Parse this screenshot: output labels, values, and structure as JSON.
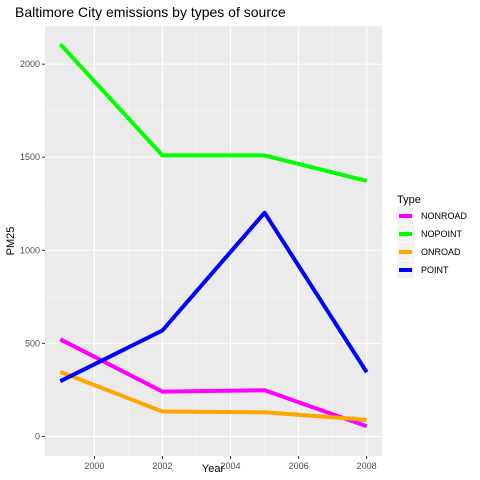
{
  "chart_data": {
    "type": "line",
    "title": "Baltimore City emissions by types of source",
    "xlabel": "Year",
    "ylabel": "PM25",
    "x": [
      1999,
      2002,
      2005,
      2008
    ],
    "x_ticks": [
      "2000",
      "2002",
      "2004",
      "2006",
      "2008"
    ],
    "y_ticks": [
      "0",
      "500",
      "1000",
      "1500",
      "2000"
    ],
    "xlim": [
      1998.55,
      2008.45
    ],
    "ylim": [
      -105,
      2205
    ],
    "grid": true,
    "legend_title": "Type",
    "legend_position": "right",
    "series": [
      {
        "name": "NONROAD",
        "color": "#ff00ff",
        "values": [
          522,
          241,
          248,
          55
        ]
      },
      {
        "name": "NOPOINT",
        "color": "#00ff00",
        "values": [
          2107,
          1510,
          1510,
          1373
        ]
      },
      {
        "name": "ONROAD",
        "color": "#ffa500",
        "values": [
          347,
          134,
          130,
          89
        ]
      },
      {
        "name": "POINT",
        "color": "#0000ff",
        "values": [
          297,
          569,
          1202,
          345
        ]
      }
    ]
  }
}
